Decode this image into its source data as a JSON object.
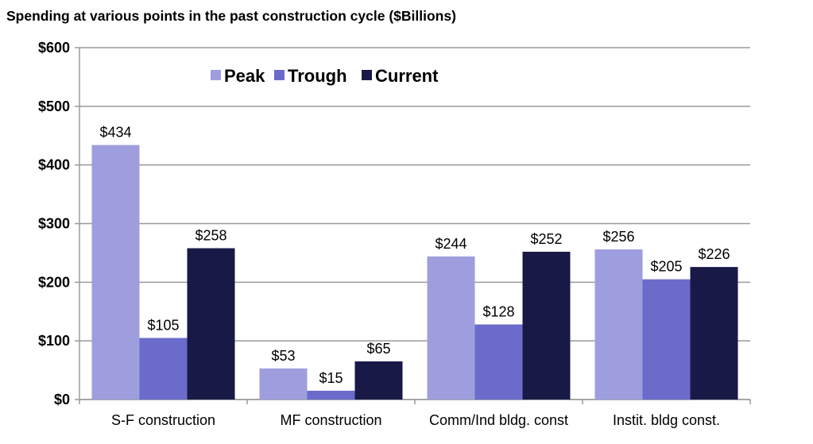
{
  "chart_data": {
    "type": "bar",
    "title": "Spending at various points in the past construction cycle ($Billions)",
    "xlabel": "",
    "ylabel": "",
    "categories": [
      "S-F construction",
      "MF construction",
      "Comm/Ind bldg. const",
      "Instit. bldg const."
    ],
    "series": [
      {
        "name": "Peak",
        "values": [
          434,
          53,
          244,
          256
        ],
        "color": "#9e9ede"
      },
      {
        "name": "Trough",
        "values": [
          105,
          15,
          128,
          205
        ],
        "color": "#6b6bcc"
      },
      {
        "name": "Current",
        "values": [
          258,
          65,
          252,
          226
        ],
        "color": "#191947"
      }
    ],
    "data_labels": [
      [
        "$434",
        "$53",
        "$244",
        "$256"
      ],
      [
        "$105",
        "$15",
        "$128",
        "$205"
      ],
      [
        "$258",
        "$65",
        "$252",
        "$226"
      ]
    ],
    "ylim": [
      0,
      600
    ],
    "yticks": [
      0,
      100,
      200,
      300,
      400,
      500,
      600
    ],
    "ytick_labels": [
      "$0",
      "$100",
      "$200",
      "$300",
      "$400",
      "$500",
      "$600"
    ],
    "grid": true,
    "legend_placement": "top-center"
  }
}
